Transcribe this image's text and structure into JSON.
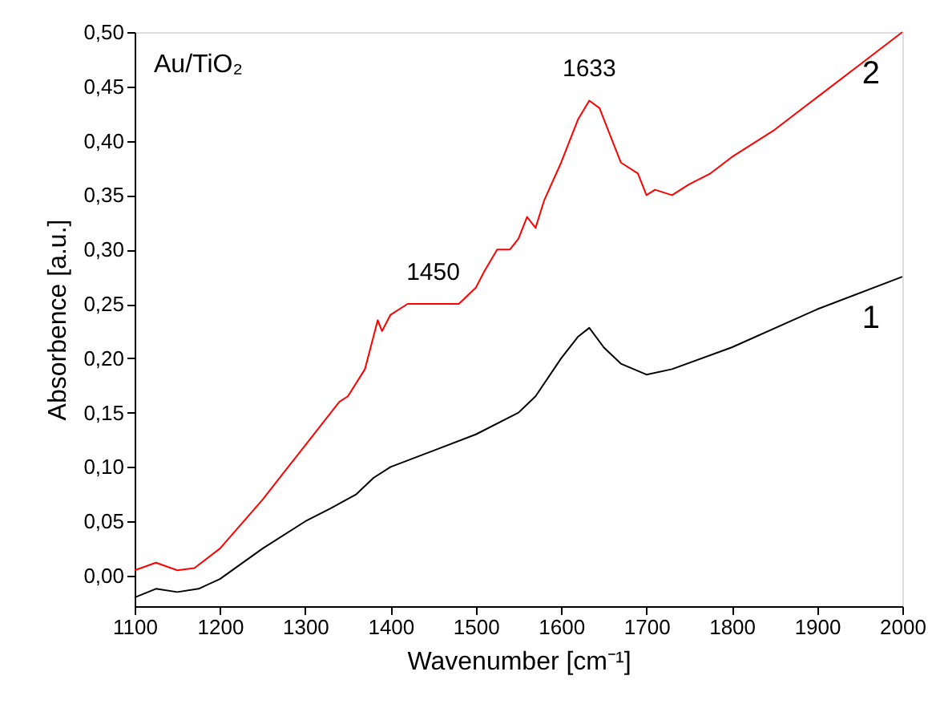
{
  "chart_data": {
    "type": "line",
    "xlabel": "Wavenumber [cm⁻¹]",
    "ylabel": "Absorbence [a.u.]",
    "xlim": [
      1100,
      2000
    ],
    "xticks": [
      1100,
      1200,
      1300,
      1400,
      1500,
      1600,
      1700,
      1800,
      1900,
      2000
    ],
    "ylim": [
      -0.028,
      0.5
    ],
    "yticks": [
      {
        "value": 0,
        "label": "0,00"
      },
      {
        "value": 0.05,
        "label": "0,05"
      },
      {
        "value": 0.1,
        "label": "0,10"
      },
      {
        "value": 0.15,
        "label": "0,15"
      },
      {
        "value": 0.2,
        "label": "0,20"
      },
      {
        "value": 0.25,
        "label": "0,25"
      },
      {
        "value": 0.3,
        "label": "0,30"
      },
      {
        "value": 0.35,
        "label": "0,35"
      },
      {
        "value": 0.4,
        "label": "0,40"
      },
      {
        "value": 0.45,
        "label": "0,45"
      },
      {
        "value": 0.5,
        "label": "0,50"
      }
    ],
    "grid": false,
    "marker": "none",
    "line_style": "solid",
    "series": [
      {
        "name": "1",
        "color": "#000000",
        "x": [
          1100,
          1125,
          1150,
          1175,
          1200,
          1250,
          1300,
          1330,
          1360,
          1380,
          1400,
          1450,
          1500,
          1550,
          1570,
          1600,
          1620,
          1633,
          1650,
          1670,
          1700,
          1730,
          1800,
          1900,
          2000
        ],
        "values": [
          -0.02,
          -0.012,
          -0.015,
          -0.012,
          -0.003,
          0.025,
          0.05,
          0.062,
          0.075,
          0.09,
          0.1,
          0.115,
          0.13,
          0.15,
          0.165,
          0.2,
          0.22,
          0.228,
          0.21,
          0.195,
          0.185,
          0.19,
          0.21,
          0.245,
          0.275
        ]
      },
      {
        "name": "2",
        "color": "#ff0000",
        "x": [
          1100,
          1125,
          1150,
          1170,
          1200,
          1250,
          1270,
          1300,
          1340,
          1350,
          1370,
          1385,
          1390,
          1400,
          1420,
          1450,
          1480,
          1500,
          1510,
          1525,
          1540,
          1550,
          1560,
          1570,
          1580,
          1600,
          1620,
          1633,
          1645,
          1660,
          1670,
          1690,
          1700,
          1710,
          1730,
          1750,
          1775,
          1800,
          1850,
          1900,
          1950,
          2000
        ],
        "values": [
          0.005,
          0.012,
          0.005,
          0.007,
          0.025,
          0.07,
          0.09,
          0.12,
          0.16,
          0.165,
          0.19,
          0.235,
          0.225,
          0.24,
          0.25,
          0.25,
          0.25,
          0.265,
          0.28,
          0.3,
          0.3,
          0.31,
          0.33,
          0.32,
          0.345,
          0.38,
          0.42,
          0.437,
          0.43,
          0.4,
          0.38,
          0.37,
          0.35,
          0.355,
          0.35,
          0.36,
          0.37,
          0.385,
          0.41,
          0.44,
          0.47,
          0.5
        ]
      }
    ],
    "annotations": [
      "Au/TiO₂",
      {
        "text": "1450",
        "x": 1450,
        "y": 0.25
      },
      {
        "text": "1633",
        "x": 1633,
        "y": 0.437
      }
    ]
  }
}
